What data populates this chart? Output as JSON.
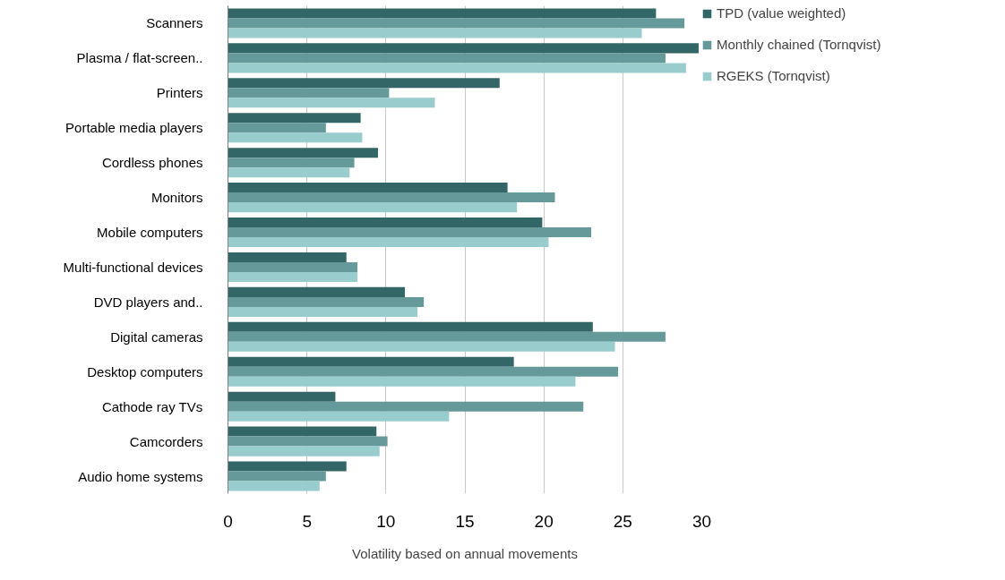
{
  "chart_data": {
    "type": "bar",
    "orientation": "horizontal",
    "xlabel": "Volatility based on annual movements",
    "categories": [
      "Scanners",
      "Plasma / flat-screen..",
      "Printers",
      "Portable media players",
      "Cordless phones",
      "Monitors",
      "Mobile computers",
      "Multi-functional devices",
      "DVD players and..",
      "Digital cameras",
      "Desktop computers",
      "Cathode ray TVs",
      "Camcorders",
      "Audio home systems"
    ],
    "series": [
      {
        "name": "TPD (value weighted)",
        "color": "#336666",
        "values": [
          27.1,
          29.8,
          17.2,
          8.4,
          9.5,
          17.7,
          19.9,
          7.5,
          11.2,
          23.1,
          18.1,
          6.8,
          9.4,
          7.5
        ]
      },
      {
        "name": "Monthly chained (Tornqvist)",
        "color": "#669999",
        "values": [
          28.9,
          27.7,
          10.2,
          6.2,
          8.0,
          20.7,
          23.0,
          8.2,
          12.4,
          27.7,
          24.7,
          22.5,
          10.1,
          6.2
        ]
      },
      {
        "name": "RGEKS (Tornqvist)",
        "color": "#99cccc",
        "values": [
          26.2,
          29.0,
          13.1,
          8.5,
          7.7,
          18.3,
          20.3,
          8.2,
          12.0,
          24.5,
          22.0,
          14.0,
          9.6,
          5.8
        ]
      }
    ],
    "xlim": [
      0,
      30
    ],
    "xticks": [
      0,
      5,
      10,
      15,
      20,
      25,
      30
    ],
    "grid": "x",
    "legend": "top right"
  }
}
